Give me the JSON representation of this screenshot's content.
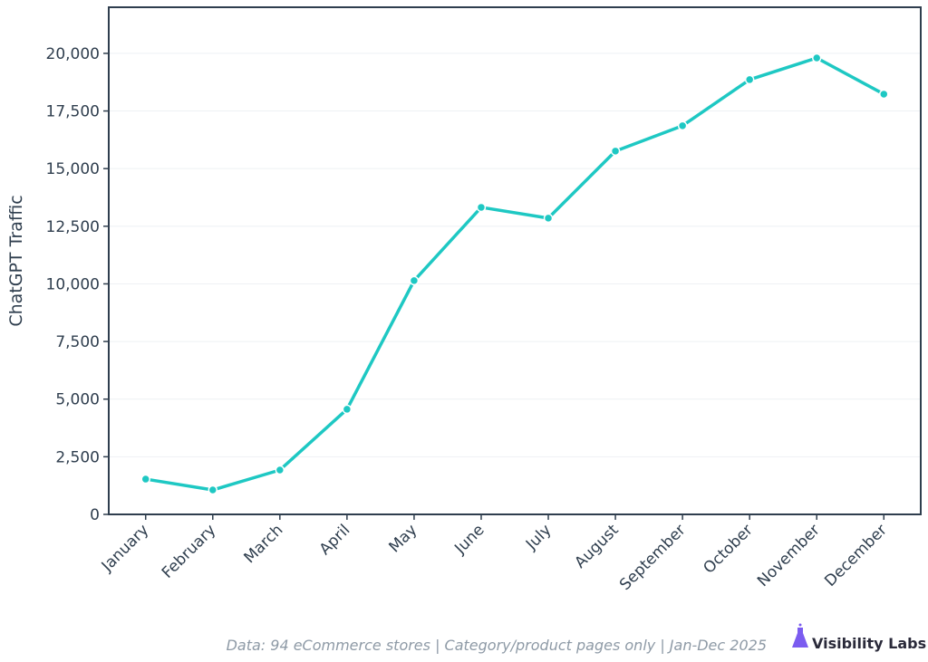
{
  "chart_data": {
    "type": "line",
    "y_label": "ChatGPT Traffic",
    "categories": [
      "January",
      "February",
      "March",
      "April",
      "May",
      "June",
      "July",
      "August",
      "September",
      "October",
      "November",
      "December"
    ],
    "series": [
      {
        "name": "ChatGPT Traffic",
        "color": "#1ec8c3",
        "values": [
          1530,
          1060,
          1925,
          4560,
          10140,
          13320,
          12850,
          15760,
          16860,
          18860,
          19800,
          18230
        ]
      }
    ],
    "ylim": [
      0,
      22000
    ],
    "yticks": [
      0,
      {
        "value": 2500,
        "label": "2,500"
      },
      {
        "value": 5000,
        "label": "5,000"
      },
      {
        "value": 7500,
        "label": "7,500"
      },
      {
        "value": 10000,
        "label": "10,000"
      },
      {
        "value": 12500,
        "label": "12,500"
      },
      {
        "value": 15000,
        "label": "15,000"
      },
      {
        "value": 17500,
        "label": "17,500"
      },
      {
        "value": 20000,
        "label": "20,000"
      }
    ],
    "grid": true,
    "footnote": "Data: 94 eCommerce stores | Category/product pages only | Jan-Dec 2025",
    "brand": "Visibility Labs"
  }
}
